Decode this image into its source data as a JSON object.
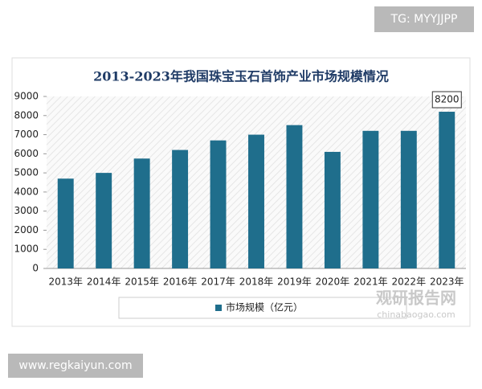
{
  "watermark_top": "TG: MYYJJPP",
  "watermark_bottom": "www.regkaiyun.com",
  "logo": {
    "name": "观研报告网",
    "url": "chinabaogao.com"
  },
  "chart_data": {
    "type": "bar",
    "title": "2013-2023年我国珠宝玉石首饰产业市场规模情况",
    "categories": [
      "2013年",
      "2014年",
      "2015年",
      "2016年",
      "2017年",
      "2018年",
      "2019年",
      "2020年",
      "2021年",
      "2022年",
      "2023年"
    ],
    "series": [
      {
        "name": "市场规模（亿元）",
        "color": "#1f6e8c",
        "values": [
          4700,
          5000,
          5750,
          6200,
          6700,
          7000,
          7500,
          6100,
          7200,
          7200,
          8200
        ]
      }
    ],
    "ylim": [
      0,
      9000
    ],
    "yticks": [
      0,
      1000,
      2000,
      3000,
      4000,
      5000,
      6000,
      7000,
      8000,
      9000
    ],
    "legend": "bottom"
  }
}
